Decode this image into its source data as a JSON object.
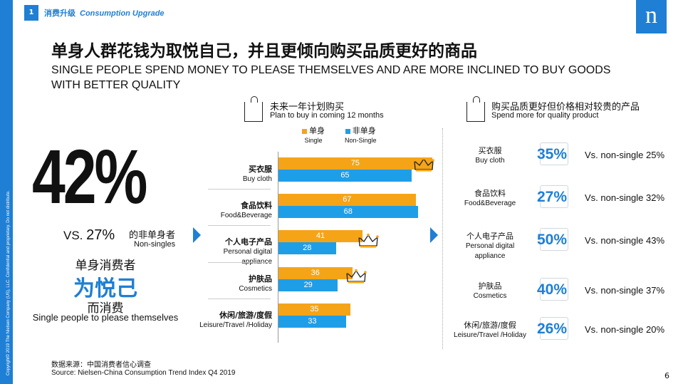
{
  "sidebar_copyright": "Copyright© 2019 The Nielsen Company (US), LLC. Confidential and proprietary. Do not distribute.",
  "section": {
    "number": "1",
    "label_cn": "消费升级",
    "label_en": "Consumption Upgrade"
  },
  "logo": "n",
  "title_cn": "单身人群花钱为取悦自己，并且更倾向购买品质更好的商品",
  "title_en": "SINGLE PEOPLE SPEND MONEY TO PLEASE THEMSELVES AND ARE MORE INCLINED TO BUY GOODS WITH BETTER QUALITY",
  "left": {
    "big_pct": "42%",
    "vs_prefix": "VS.",
    "vs_value": "27%",
    "vs_label_cn": "的非单身者",
    "vs_label_en": "Non-singles",
    "line1": "单身消费者",
    "line2": "为悦己",
    "line3": "而消费",
    "line4": "Single people to please themselves"
  },
  "chart_header": {
    "cn": "未来一年计划购买",
    "en": "Plan to buy in coming 12 months"
  },
  "right_header": {
    "cn": "购买品质更好但价格相对较贵的产品",
    "en": "Spend more for quality product"
  },
  "colors": {
    "single": "#f5a418",
    "nonsingle": "#1f9ee8",
    "accent": "#1f7fd4"
  },
  "chart_data": {
    "type": "bar",
    "orientation": "horizontal",
    "categories": [
      {
        "cn": "买衣服",
        "en": "Buy cloth"
      },
      {
        "cn": "食品饮料",
        "en": "Food&Beverage"
      },
      {
        "cn": "个人电子产品",
        "en": "Personal digital appliance"
      },
      {
        "cn": "护肤品",
        "en": "Cosmetics"
      },
      {
        "cn": "休闲/旅游/度假",
        "en": "Leisure/Travel /Holiday"
      }
    ],
    "series": [
      {
        "name": "单身",
        "name_en": "Single",
        "values": [
          75,
          67,
          41,
          36,
          35
        ]
      },
      {
        "name": "非单身",
        "name_en": "Non-Single",
        "values": [
          65,
          68,
          28,
          29,
          33
        ]
      }
    ],
    "crown_icons": [
      "crown-icon",
      "crown-icon",
      "crown-icon"
    ],
    "xlim": [
      0,
      80
    ]
  },
  "quality_items": [
    {
      "cn": "买衣服",
      "en": "Buy cloth",
      "pct": "35%",
      "compare": "Vs. non-single 25%",
      "icon": "tshirt-icon"
    },
    {
      "cn": "食品饮料",
      "en": "Food&Beverage",
      "pct": "27%",
      "compare": "Vs. non-single 32%",
      "icon": "food-icon"
    },
    {
      "cn": "个人电子产品",
      "en": "Personal digital appliance",
      "pct": "50%",
      "compare": "Vs. non-single 43%",
      "icon": "phone-icon"
    },
    {
      "cn": "护肤品",
      "en": "Cosmetics",
      "pct": "40%",
      "compare": "Vs. non-single 37%",
      "icon": "cosmetics-icon"
    },
    {
      "cn": "休闲/旅游/度假",
      "en": "Leisure/Travel /Holiday",
      "pct": "26%",
      "compare": "Vs. non-single 20%",
      "icon": "travel-icon"
    }
  ],
  "source_cn": "数据来源：中国消费者信心调查",
  "source_en": "Source: Nielsen-China Consumption Trend Index Q4 2019",
  "page_number": "6"
}
